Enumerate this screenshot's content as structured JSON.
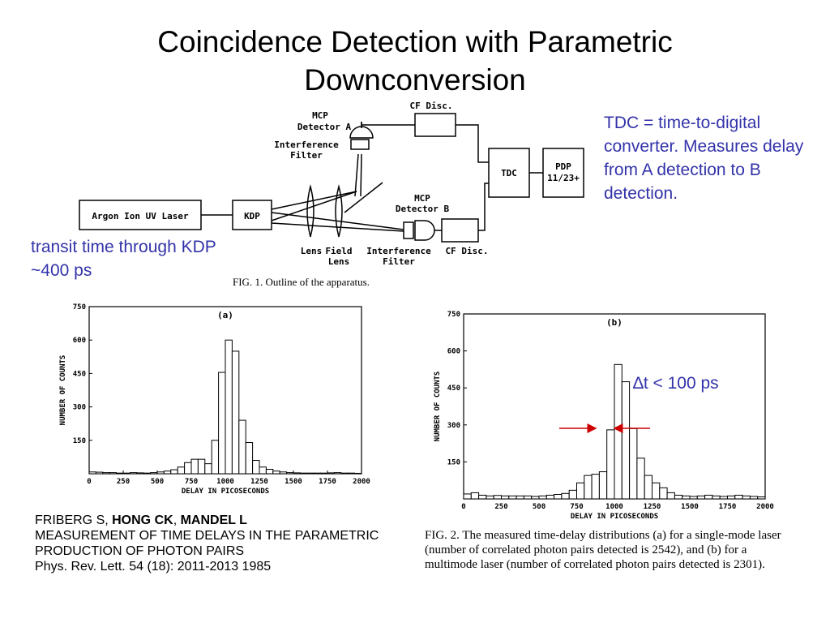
{
  "slide": {
    "title_line1": "Coincidence Detection with Parametric",
    "title_line2": "Downconversion",
    "tdc_note": "TDC = time-to-digital converter.  Measures delay from A detection to B detection.",
    "kdp_note_line1": "transit time through KDP",
    "kdp_note_line2": "~400 ps",
    "dt_note": "∆t < 100 ps",
    "accent_color": "#3333aa",
    "arrow_color": "#cc0000"
  },
  "apparatus": {
    "laser": "Argon Ion UV Laser",
    "kdp": "KDP",
    "mcp_a_line1": "MCP",
    "mcp_a_line2": "Detector A",
    "if_a_line1": "Interference",
    "if_a_line2": "Filter",
    "cf_disc_top": "CF Disc.",
    "tdc": "TDC",
    "pdp_line1": "PDP",
    "pdp_line2": "11/23+",
    "mcp_b_line1": "MCP",
    "mcp_b_line2": "Detector B",
    "lens": "Lens",
    "field_lens_line1": "Field",
    "field_lens_line2": "Lens",
    "if_b_line1": "Interference",
    "if_b_line2": "Filter",
    "cf_disc_bottom": "CF Disc.",
    "caption": "FIG. 1.  Outline of the apparatus."
  },
  "reference": {
    "authors_plain": "FRIBERG S, ",
    "author2": "HONG CK",
    "sep": ", ",
    "author3": "MANDEL L",
    "title": "MEASUREMENT OF TIME DELAYS IN THE PARAMETRIC PRODUCTION OF PHOTON PAIRS",
    "journal": "Phys. Rev. Lett. 54 (18): 2011-2013 1985"
  },
  "fig2_caption": "FIG. 2.  The measured time-delay distributions (a) for a single-mode laser (number of correlated photon pairs detected is 2542), and (b) for a multimode laser (number of correlated photon pairs detected is 2301).",
  "chart_data": [
    {
      "type": "bar",
      "panel_label": "(a)",
      "xlabel": "DELAY IN PICOSECONDS",
      "ylabel": "NUMBER OF COUNTS",
      "xlim": [
        0,
        2000
      ],
      "ylim": [
        0,
        750
      ],
      "xticks": [
        "0",
        "250",
        "500",
        "750",
        "1000",
        "1250",
        "1500",
        "1750",
        "2000"
      ],
      "yticks": [
        "150",
        "300",
        "450",
        "600",
        "750"
      ],
      "bin_start": 0,
      "bin_width": 50,
      "values": [
        8,
        7,
        5,
        5,
        3,
        3,
        5,
        4,
        3,
        5,
        8,
        12,
        18,
        30,
        50,
        65,
        65,
        45,
        150,
        455,
        600,
        550,
        240,
        140,
        60,
        30,
        20,
        12,
        8,
        5,
        4,
        3,
        3,
        3,
        3,
        4,
        5,
        3,
        3,
        2
      ]
    },
    {
      "type": "bar",
      "panel_label": "(b)",
      "xlabel": "DELAY IN PICOSECONDS",
      "ylabel": "NUMBER OF COUNTS",
      "xlim": [
        0,
        2000
      ],
      "ylim": [
        0,
        750
      ],
      "xticks": [
        "0",
        "250",
        "500",
        "750",
        "1000",
        "1250",
        "1500",
        "1750",
        "2000"
      ],
      "yticks": [
        "150",
        "300",
        "450",
        "600",
        "750"
      ],
      "bin_start": 0,
      "bin_width": 50,
      "values": [
        20,
        25,
        15,
        12,
        14,
        12,
        12,
        12,
        12,
        10,
        12,
        15,
        18,
        22,
        35,
        65,
        95,
        100,
        110,
        280,
        545,
        475,
        285,
        165,
        95,
        65,
        45,
        25,
        15,
        12,
        10,
        12,
        15,
        12,
        10,
        12,
        15,
        12,
        10,
        8
      ]
    }
  ]
}
